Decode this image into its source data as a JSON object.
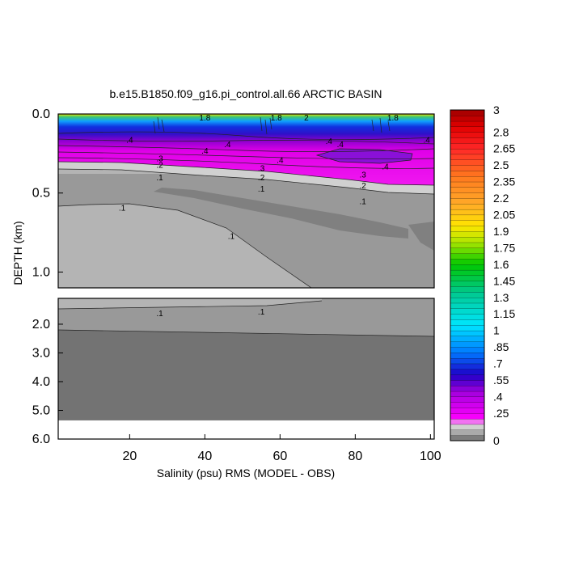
{
  "chart_data": {
    "type": "heatmap",
    "title": "b.e15.B1850.f09_g16.pi_control.all.66 ARCTIC BASIN",
    "xlabel": "Salinity (psu) RMS (MODEL - OBS)",
    "ylabel": "DEPTH (km)",
    "xlim": [
      1,
      101
    ],
    "upper_panel": {
      "ylim": [
        0.0,
        1.1
      ],
      "y_ticks": [
        {
          "value": 0.0,
          "label": "0.0"
        },
        {
          "value": 0.5,
          "label": "0.5"
        },
        {
          "value": 1.0,
          "label": "1.0"
        }
      ]
    },
    "lower_panel": {
      "ylim": [
        1.1,
        6.0
      ],
      "y_ticks": [
        {
          "value": 2.0,
          "label": "2.0"
        },
        {
          "value": 3.0,
          "label": "3.0"
        },
        {
          "value": 4.0,
          "label": "4.0"
        },
        {
          "value": 5.0,
          "label": "5.0"
        },
        {
          "value": 6.0,
          "label": "6.0"
        }
      ],
      "bottom_depth": 5.35
    },
    "x_ticks": [
      {
        "value": 20,
        "label": "20"
      },
      {
        "value": 40,
        "label": "40"
      },
      {
        "value": 60,
        "label": "60"
      },
      {
        "value": 80,
        "label": "80"
      },
      {
        "value": 100,
        "label": "100"
      }
    ],
    "colorbar": {
      "range": [
        0,
        3
      ],
      "labels": [
        {
          "value": 3,
          "label": "3"
        },
        {
          "value": 2.8,
          "label": "2.8"
        },
        {
          "value": 2.65,
          "label": "2.65"
        },
        {
          "value": 2.5,
          "label": "2.5"
        },
        {
          "value": 2.35,
          "label": "2.35"
        },
        {
          "value": 2.2,
          "label": "2.2"
        },
        {
          "value": 2.05,
          "label": "2.05"
        },
        {
          "value": 1.9,
          "label": "1.9"
        },
        {
          "value": 1.75,
          "label": "1.75"
        },
        {
          "value": 1.6,
          "label": "1.6"
        },
        {
          "value": 1.45,
          "label": "1.45"
        },
        {
          "value": 1.3,
          "label": "1.3"
        },
        {
          "value": 1.15,
          "label": "1.15"
        },
        {
          "value": 1,
          "label": "1"
        },
        {
          "value": 0.85,
          "label": ".85"
        },
        {
          "value": 0.7,
          "label": ".7"
        },
        {
          "value": 0.55,
          "label": ".55"
        },
        {
          "value": 0.4,
          "label": ".4"
        },
        {
          "value": 0.25,
          "label": ".25"
        },
        {
          "value": 0,
          "label": "0"
        }
      ]
    },
    "contour_labels": [
      {
        "x": 40,
        "depth": 0.02,
        "text": "1.8"
      },
      {
        "x": 59,
        "depth": 0.02,
        "text": "1.8"
      },
      {
        "x": 67,
        "depth": 0.02,
        "text": "2"
      },
      {
        "x": 90,
        "depth": 0.02,
        "text": "1.8"
      },
      {
        "x": 20,
        "depth": 0.16,
        "text": ".4"
      },
      {
        "x": 46,
        "depth": 0.19,
        "text": ".4"
      },
      {
        "x": 40,
        "depth": 0.23,
        "text": ".4"
      },
      {
        "x": 73,
        "depth": 0.17,
        "text": ".4"
      },
      {
        "x": 76,
        "depth": 0.19,
        "text": ".4"
      },
      {
        "x": 60,
        "depth": 0.29,
        "text": ".4"
      },
      {
        "x": 88,
        "depth": 0.33,
        "text": ".4"
      },
      {
        "x": 99,
        "depth": 0.16,
        "text": ".4"
      },
      {
        "x": 28,
        "depth": 0.28,
        "text": ".3"
      },
      {
        "x": 28,
        "depth": 0.32,
        "text": ".2"
      },
      {
        "x": 28,
        "depth": 0.4,
        "text": ".1"
      },
      {
        "x": 55,
        "depth": 0.34,
        "text": ".3"
      },
      {
        "x": 55,
        "depth": 0.4,
        "text": ".2"
      },
      {
        "x": 55,
        "depth": 0.47,
        "text": ".1"
      },
      {
        "x": 82,
        "depth": 0.38,
        "text": ".3"
      },
      {
        "x": 82,
        "depth": 0.45,
        "text": ".2"
      },
      {
        "x": 82,
        "depth": 0.55,
        "text": ".1"
      },
      {
        "x": 18,
        "depth": 0.59,
        "text": ".1"
      },
      {
        "x": 47,
        "depth": 0.77,
        "text": ".1"
      },
      {
        "x": 28,
        "depth": 1.6,
        "text": ".1"
      },
      {
        "x": 55,
        "depth": 1.55,
        "text": ".1"
      }
    ],
    "grid": false,
    "legend": "right colorbar"
  }
}
